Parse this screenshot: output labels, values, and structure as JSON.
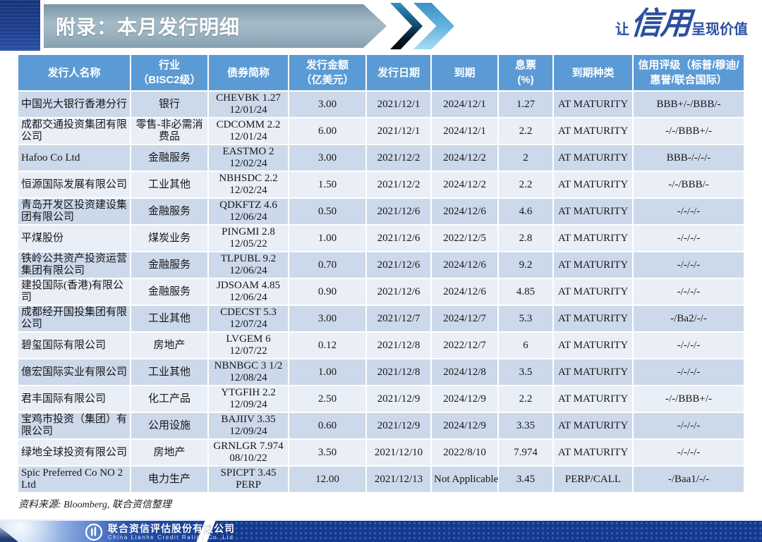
{
  "page": {
    "title": "附录：本月发行明细",
    "slogan": {
      "prefix": "让",
      "emphasis": "信用",
      "suffix": "呈现价值"
    },
    "source_note": "资料来源: Bloomberg, 联合资信整理",
    "footer": {
      "company_cn": "联合资信评估股份有限公司",
      "company_en": "China Lianhe Credit Rating Co.,Ltd"
    }
  },
  "colors": {
    "header_blue": "#5b9bd5",
    "band_dark": "#ccd9eb",
    "band_light": "#e9eef7",
    "brand_navy": "#133a8f",
    "slogan_blue": "#2b4f9e"
  },
  "table": {
    "headers": [
      "发行人名称",
      "行业\n（BISC2级）",
      "债券简称",
      "发行金额\n（亿美元）",
      "发行日期",
      "到期",
      "息票\n(%)",
      "到期种类",
      "信用评级（标普/穆迪/惠誉/联合国际）"
    ],
    "rows": [
      [
        "中国光大银行香港分行",
        "银行",
        "CHEVBK 1.27 12/01/24",
        "3.00",
        "2021/12/1",
        "2024/12/1",
        "1.27",
        "AT MATURITY",
        "BBB+/-/BBB/-"
      ],
      [
        "成都交通投资集团有限公司",
        "零售-非必需消费品",
        "CDCOMM 2.2 12/01/24",
        "6.00",
        "2021/12/1",
        "2024/12/1",
        "2.2",
        "AT MATURITY",
        "-/-/BBB+/-"
      ],
      [
        "Hafoo Co Ltd",
        "金融服务",
        "EASTMO 2 12/02/24",
        "3.00",
        "2021/12/2",
        "2024/12/2",
        "2",
        "AT MATURITY",
        "BBB-/-/-/-"
      ],
      [
        "恒源国际发展有限公司",
        "工业其他",
        "NBHSDC 2.2 12/02/24",
        "1.50",
        "2021/12/2",
        "2024/12/2",
        "2.2",
        "AT MATURITY",
        "-/-/BBB/-"
      ],
      [
        "青岛开发区投资建设集团有限公司",
        "金融服务",
        "QDKFTZ 4.6 12/06/24",
        "0.50",
        "2021/12/6",
        "2024/12/6",
        "4.6",
        "AT MATURITY",
        "-/-/-/-"
      ],
      [
        "平煤股份",
        "煤炭业务",
        "PINGMI 2.8 12/05/22",
        "1.00",
        "2021/12/6",
        "2022/12/5",
        "2.8",
        "AT MATURITY",
        "-/-/-/-"
      ],
      [
        "铁岭公共资产投资运营集团有限公司",
        "金融服务",
        "TLPUBL 9.2 12/06/24",
        "0.70",
        "2021/12/6",
        "2024/12/6",
        "9.2",
        "AT MATURITY",
        "-/-/-/-"
      ],
      [
        "建投国际(香港)有限公司",
        "金融服务",
        "JDSOAM 4.85 12/06/24",
        "0.90",
        "2021/12/6",
        "2024/12/6",
        "4.85",
        "AT MATURITY",
        "-/-/-/-"
      ],
      [
        "成都经开国投集团有限公司",
        "工业其他",
        "CDECST 5.3 12/07/24",
        "3.00",
        "2021/12/7",
        "2024/12/7",
        "5.3",
        "AT MATURITY",
        "-/Ba2/-/-"
      ],
      [
        "碧玺国际有限公司",
        "房地产",
        "LVGEM 6 12/07/22",
        "0.12",
        "2021/12/8",
        "2022/12/7",
        "6",
        "AT MATURITY",
        "-/-/-/-"
      ],
      [
        "億宏国际实业有限公司",
        "工业其他",
        "NBNBGC 3 1/2 12/08/24",
        "1.00",
        "2021/12/8",
        "2024/12/8",
        "3.5",
        "AT MATURITY",
        "-/-/-/-"
      ],
      [
        "君丰国际有限公司",
        "化工产品",
        "YTGFIH 2.2 12/09/24",
        "2.50",
        "2021/12/9",
        "2024/12/9",
        "2.2",
        "AT MATURITY",
        "-/-/BBB+/-"
      ],
      [
        "宝鸡市投资（集团）有限公司",
        "公用设施",
        "BAJIIV 3.35 12/09/24",
        "0.60",
        "2021/12/9",
        "2024/12/9",
        "3.35",
        "AT MATURITY",
        "-/-/-/-"
      ],
      [
        "绿地全球投资有限公司",
        "房地产",
        "GRNLGR 7.974 08/10/22",
        "3.50",
        "2021/12/10",
        "2022/8/10",
        "7.974",
        "AT MATURITY",
        "-/-/-/-"
      ],
      [
        "Spic Preferred Co NO 2 Ltd",
        "电力生产",
        "SPICPT 3.45 PERP",
        "12.00",
        "2021/12/13",
        "Not Applicable",
        "3.45",
        "PERP/CALL",
        "-/Baa1/-/-"
      ]
    ]
  }
}
